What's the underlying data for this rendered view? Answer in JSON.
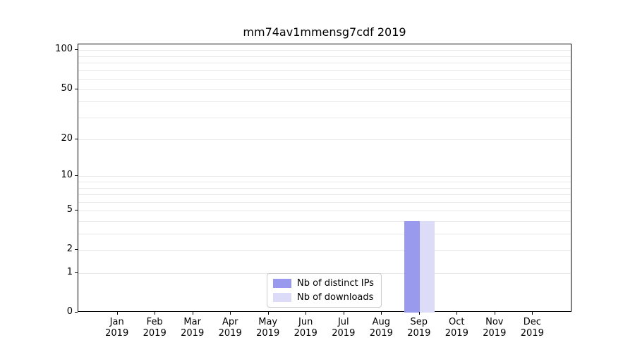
{
  "chart_data": {
    "type": "bar",
    "title": "mm74av1mmensg7cdf 2019",
    "categories": [
      "Jan",
      "Feb",
      "Mar",
      "Apr",
      "May",
      "Jun",
      "Jul",
      "Aug",
      "Sep",
      "Oct",
      "Nov",
      "Dec"
    ],
    "x_year": "2019",
    "series": [
      {
        "name": "Nb of distinct IPs",
        "color": "#9999ee",
        "values": [
          0,
          0,
          0,
          0,
          0,
          0,
          0,
          0,
          4,
          0,
          0,
          0
        ]
      },
      {
        "name": "Nb of downloads",
        "color": "#dcdcf8",
        "values": [
          0,
          0,
          0,
          0,
          0,
          0,
          0,
          0,
          4,
          0,
          0,
          0
        ]
      }
    ],
    "yscale": "log1p",
    "ylim": [
      0,
      111
    ],
    "yticks": [
      100,
      50,
      20,
      10,
      5,
      2,
      1,
      0
    ],
    "grid_values": [
      1,
      2,
      3,
      4,
      5,
      6,
      7,
      8,
      9,
      10,
      20,
      30,
      40,
      50,
      60,
      70,
      80,
      90,
      100
    ],
    "legend_position": "lower-center",
    "grid": "horizontal"
  }
}
